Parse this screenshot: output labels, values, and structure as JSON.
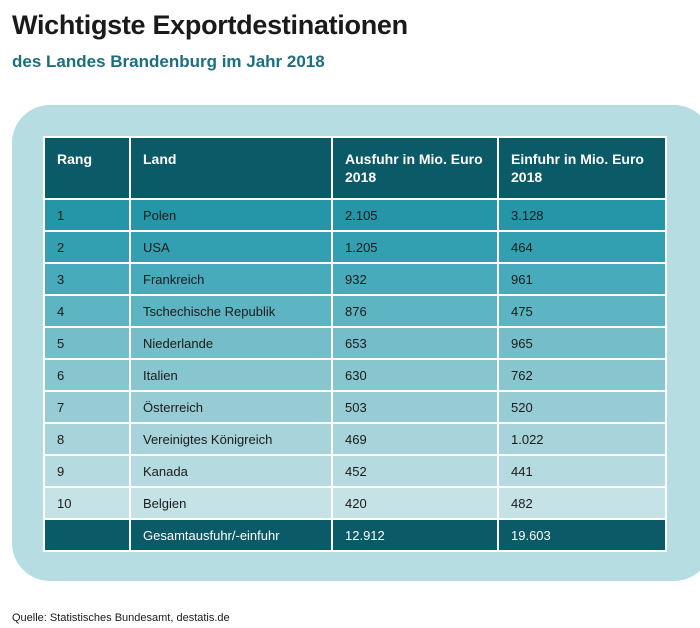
{
  "title": "Wichtigste Exportdestinationen",
  "subtitle": "des Landes Brandenburg im Jahr 2018",
  "source": "Quelle: Statistisches Bundesamt, destatis.de",
  "colors": {
    "header": "#0b5a67",
    "subtitle": "#1b6f80",
    "panel": "#b5dde2"
  },
  "chart_data": {
    "type": "table",
    "columns": [
      "Rang",
      "Land",
      "Ausfuhr in Mio. Euro 2018",
      "Einfuhr in Mio. Euro 2018"
    ],
    "rows": [
      [
        "1",
        "Polen",
        "2.105",
        "3.128"
      ],
      [
        "2",
        "USA",
        "1.205",
        "464"
      ],
      [
        "3",
        "Frankreich",
        "932",
        "961"
      ],
      [
        "4",
        "Tschechische Republik",
        "876",
        "475"
      ],
      [
        "5",
        "Niederlande",
        "653",
        "965"
      ],
      [
        "6",
        "Italien",
        "630",
        "762"
      ],
      [
        "7",
        "Österreich",
        "503",
        "520"
      ],
      [
        "8",
        "Vereinigtes Königreich",
        "469",
        "1.022"
      ],
      [
        "9",
        "Kanada",
        "452",
        "441"
      ],
      [
        "10",
        "Belgien",
        "420",
        "482"
      ]
    ],
    "total": [
      "",
      "Gesamtausfuhr/-einfuhr",
      "12.912",
      "19.603"
    ]
  }
}
